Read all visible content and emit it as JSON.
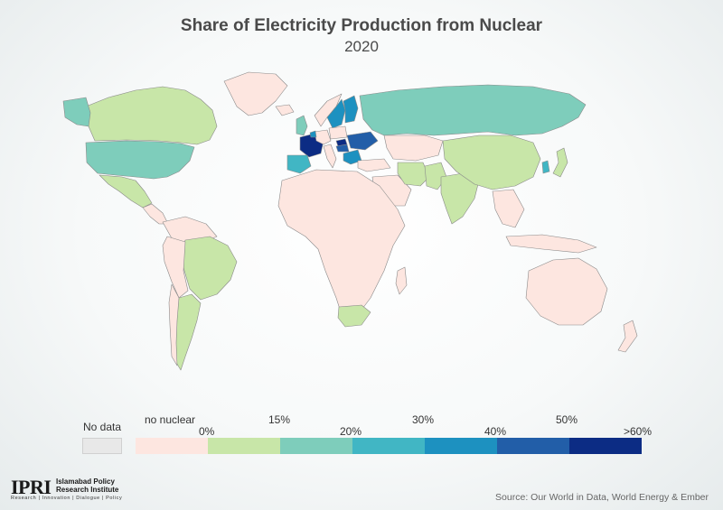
{
  "title": "Share of Electricity Production from Nuclear",
  "subtitle": "2020",
  "source": "Source: Our World in Data, World Energy & Ember",
  "logo": {
    "mark": "IPRI",
    "name_line1": "Islamabad Policy",
    "name_line2": "Research Institute",
    "tagline": "Research | Innovation | Dialogue | Policy"
  },
  "legend": {
    "nodata_label": "No data",
    "labels": [
      "no nuclear",
      "0%",
      "15%",
      "20%",
      "30%",
      "40%",
      "50%",
      ">60%"
    ],
    "bins": [
      {
        "range": "no nuclear",
        "color": "#fde6e0"
      },
      {
        "range": "0-15%",
        "color": "#c8e6a8"
      },
      {
        "range": "15-20%",
        "color": "#7ecdbb"
      },
      {
        "range": "20-30%",
        "color": "#41b6c4"
      },
      {
        "range": "30-40%",
        "color": "#1d91c0"
      },
      {
        "range": "40-50%",
        "color": "#225ea8"
      },
      {
        "range": ">60%",
        "color": "#0c2c84"
      }
    ],
    "nodata_color": "#e8e8e8"
  },
  "regions": [
    {
      "name": "Canada",
      "category": "0-15%"
    },
    {
      "name": "United States",
      "category": "15-20%"
    },
    {
      "name": "Mexico",
      "category": "0-15%"
    },
    {
      "name": "Brazil",
      "category": "0-15%"
    },
    {
      "name": "Argentina",
      "category": "0-15%"
    },
    {
      "name": "Greenland",
      "category": "no nuclear"
    },
    {
      "name": "Russia",
      "category": "15-20%"
    },
    {
      "name": "China",
      "category": "0-15%"
    },
    {
      "name": "India",
      "category": "0-15%"
    },
    {
      "name": "Pakistan",
      "category": "0-15%"
    },
    {
      "name": "Japan",
      "category": "0-15%"
    },
    {
      "name": "South Korea",
      "category": "20-30%"
    },
    {
      "name": "Iran",
      "category": "0-15%"
    },
    {
      "name": "South Africa",
      "category": "0-15%"
    },
    {
      "name": "France",
      "category": ">60%"
    },
    {
      "name": "Spain",
      "category": "20-30%"
    },
    {
      "name": "United Kingdom",
      "category": "15-20%"
    },
    {
      "name": "Sweden",
      "category": "30-40%"
    },
    {
      "name": "Finland",
      "category": "30-40%"
    },
    {
      "name": "Ukraine",
      "category": "40-50%"
    },
    {
      "name": "Slovakia",
      "category": ">60%"
    },
    {
      "name": "Belgium",
      "category": "30-40%"
    },
    {
      "name": "Hungary",
      "category": "40-50%"
    },
    {
      "name": "Bulgaria",
      "category": "30-40%"
    },
    {
      "name": "Africa (most)",
      "category": "no nuclear"
    },
    {
      "name": "Australia",
      "category": "no nuclear"
    },
    {
      "name": "Saudi Arabia",
      "category": "no nuclear"
    },
    {
      "name": "Southeast Asia",
      "category": "no nuclear"
    },
    {
      "name": "South America (other)",
      "category": "no nuclear"
    }
  ]
}
